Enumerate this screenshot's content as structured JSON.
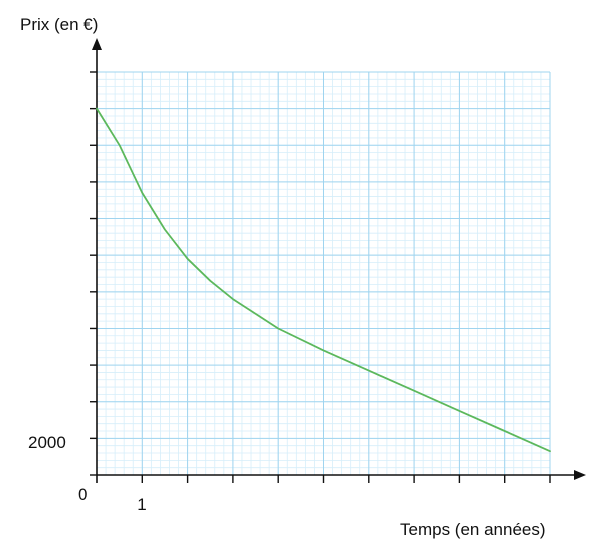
{
  "chart_data": {
    "type": "line",
    "title": "",
    "ylabel": "Prix (en €)",
    "xlabel": "Temps (en années)",
    "origin_label": "0",
    "x_tick_labels": [
      {
        "x": 1,
        "label": "1"
      }
    ],
    "y_tick_labels": [
      {
        "y": 2000,
        "label": "2000"
      }
    ],
    "xlim": [
      0,
      10
    ],
    "ylim": [
      1000,
      12000
    ],
    "x_major_step": 1,
    "y_major_step": 1000,
    "grid": true,
    "series": [
      {
        "color": "#5cb85c",
        "x": [
          0,
          0.5,
          1,
          1.5,
          2,
          2.5,
          3,
          3.5,
          4,
          5,
          6,
          7,
          8,
          9,
          10
        ],
        "y": [
          11000,
          10000,
          8700,
          7700,
          6900,
          6300,
          5800,
          5400,
          5000,
          4400,
          3850,
          3300,
          2750,
          2200,
          1650
        ]
      }
    ]
  },
  "colors": {
    "grid_major": "#9fd4ef",
    "grid_minor": "#d6eefa",
    "axis": "#111111",
    "curve": "#5cb85c"
  }
}
